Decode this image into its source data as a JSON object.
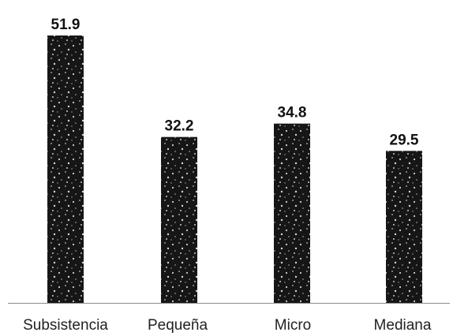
{
  "chart_data": {
    "type": "bar",
    "categories": [
      "Subsistencia",
      "Pequeña",
      "Micro",
      "Mediana"
    ],
    "values": [
      51.9,
      32.2,
      34.8,
      29.5
    ],
    "value_labels": [
      "51.9",
      "32.2",
      "34.8",
      "29.5"
    ],
    "title": "",
    "xlabel": "",
    "ylabel": "",
    "ylim": [
      0,
      51.9
    ],
    "grid": false,
    "legend": "none",
    "bar_color": "#161616",
    "speckle_color": "#c9c9c9"
  }
}
